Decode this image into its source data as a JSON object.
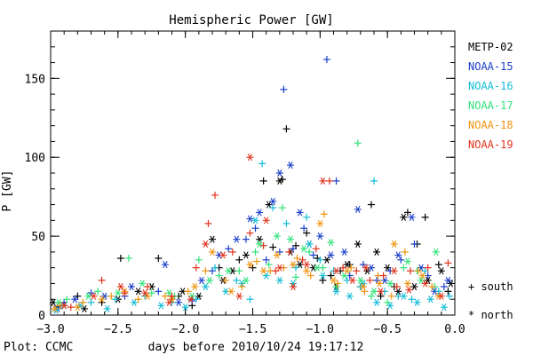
{
  "chart_data": {
    "type": "scatter",
    "title": "Hemispheric Power [GW]",
    "ylabel": "P [GW]",
    "xlabel": "days before 2010/10/24 19:17:12",
    "footer": "Plot: CCMC",
    "xlim": [
      -3.0,
      0.0
    ],
    "ylim": [
      0,
      180
    ],
    "x_ticks": [
      -3.0,
      -2.5,
      -2.0,
      -1.5,
      -1.0,
      -0.5,
      0.0
    ],
    "x_tick_labels": [
      "−3.0",
      "−2.5",
      "−2.0",
      "−1.5",
      "−1.0",
      "−0.5",
      "0.0"
    ],
    "y_ticks": [
      0,
      50,
      100,
      150
    ],
    "y_tick_labels": [
      "0",
      "50",
      "100",
      "150"
    ],
    "grid": false,
    "legend_position": "right",
    "marker_key": {
      "south": {
        "label": "+ south",
        "symbol": "+"
      },
      "north": {
        "label": "* north",
        "symbol": "*"
      }
    },
    "series": [
      {
        "name": "METP-02",
        "color": "#000000",
        "south": [
          [
            -2.95,
            5
          ],
          [
            -2.8,
            12
          ],
          [
            -2.62,
            8
          ],
          [
            -2.48,
            36
          ],
          [
            -2.2,
            36
          ],
          [
            -2.05,
            12
          ],
          [
            -1.95,
            6
          ],
          [
            -1.75,
            30
          ],
          [
            -1.6,
            35
          ],
          [
            -1.5,
            30
          ],
          [
            -1.42,
            85
          ],
          [
            -1.35,
            43
          ],
          [
            -1.28,
            86
          ],
          [
            -1.25,
            118
          ],
          [
            -1.18,
            44
          ],
          [
            -1.1,
            52
          ],
          [
            -1.02,
            36
          ],
          [
            -0.98,
            22
          ],
          [
            -0.92,
            25
          ],
          [
            -0.85,
            28
          ],
          [
            -0.78,
            32
          ],
          [
            -0.7,
            18
          ],
          [
            -0.62,
            70
          ],
          [
            -0.55,
            12
          ],
          [
            -0.45,
            18
          ],
          [
            -0.35,
            65
          ],
          [
            -0.28,
            45
          ],
          [
            -0.22,
            62
          ],
          [
            -0.12,
            32
          ],
          [
            -0.05,
            15
          ]
        ],
        "north": [
          [
            -2.98,
            8
          ],
          [
            -2.9,
            6
          ],
          [
            -2.75,
            4
          ],
          [
            -2.5,
            10
          ],
          [
            -2.35,
            15
          ],
          [
            -2.25,
            18
          ],
          [
            -2.1,
            10
          ],
          [
            -2.02,
            15
          ],
          [
            -1.9,
            12
          ],
          [
            -1.8,
            48
          ],
          [
            -1.72,
            22
          ],
          [
            -1.65,
            28
          ],
          [
            -1.55,
            38
          ],
          [
            -1.45,
            48
          ],
          [
            -1.38,
            70
          ],
          [
            -1.3,
            85
          ],
          [
            -1.22,
            40
          ],
          [
            -1.15,
            32
          ],
          [
            -1.05,
            30
          ],
          [
            -0.95,
            35
          ],
          [
            -0.88,
            18
          ],
          [
            -0.8,
            32
          ],
          [
            -0.72,
            45
          ],
          [
            -0.65,
            28
          ],
          [
            -0.58,
            40
          ],
          [
            -0.5,
            30
          ],
          [
            -0.42,
            15
          ],
          [
            -0.38,
            62
          ],
          [
            -0.3,
            18
          ],
          [
            -0.2,
            22
          ],
          [
            -0.1,
            28
          ],
          [
            -0.03,
            20
          ]
        ]
      },
      {
        "name": "NOAA-15",
        "color": "#1a3ec9",
        "south": [
          [
            -2.9,
            8
          ],
          [
            -2.7,
            14
          ],
          [
            -2.45,
            12
          ],
          [
            -2.2,
            15
          ],
          [
            -1.95,
            9
          ],
          [
            -1.8,
            28
          ],
          [
            -1.68,
            42
          ],
          [
            -1.55,
            48
          ],
          [
            -1.48,
            55
          ],
          [
            -1.4,
            35
          ],
          [
            -1.3,
            40
          ],
          [
            -1.27,
            143
          ],
          [
            -1.2,
            42
          ],
          [
            -1.12,
            55
          ],
          [
            -1.05,
            38
          ],
          [
            -0.95,
            162
          ],
          [
            -0.88,
            85
          ],
          [
            -0.78,
            25
          ],
          [
            -0.68,
            32
          ],
          [
            -0.58,
            22
          ],
          [
            -0.48,
            28
          ],
          [
            -0.4,
            35
          ],
          [
            -0.3,
            45
          ],
          [
            -0.2,
            25
          ],
          [
            -0.08,
            18
          ]
        ],
        "north": [
          [
            -2.95,
            4
          ],
          [
            -2.82,
            10
          ],
          [
            -2.6,
            12
          ],
          [
            -2.4,
            18
          ],
          [
            -2.15,
            32
          ],
          [
            -2.05,
            8
          ],
          [
            -1.88,
            22
          ],
          [
            -1.75,
            38
          ],
          [
            -1.62,
            48
          ],
          [
            -1.52,
            61
          ],
          [
            -1.45,
            65
          ],
          [
            -1.35,
            72
          ],
          [
            -1.3,
            90
          ],
          [
            -1.22,
            95
          ],
          [
            -1.15,
            65
          ],
          [
            -1.08,
            45
          ],
          [
            -1.0,
            50
          ],
          [
            -0.92,
            38
          ],
          [
            -0.82,
            40
          ],
          [
            -0.72,
            67
          ],
          [
            -0.62,
            30
          ],
          [
            -0.52,
            22
          ],
          [
            -0.42,
            38
          ],
          [
            -0.32,
            62
          ],
          [
            -0.25,
            30
          ],
          [
            -0.15,
            15
          ],
          [
            -0.05,
            22
          ]
        ]
      },
      {
        "name": "NOAA-16",
        "color": "#12bcd6",
        "south": [
          [
            -2.92,
            6
          ],
          [
            -2.7,
            8
          ],
          [
            -2.52,
            10
          ],
          [
            -2.3,
            12
          ],
          [
            -2.1,
            8
          ],
          [
            -1.92,
            10
          ],
          [
            -1.78,
            30
          ],
          [
            -1.62,
            22
          ],
          [
            -1.52,
            10
          ],
          [
            -1.43,
            96
          ],
          [
            -1.35,
            68
          ],
          [
            -1.25,
            58
          ],
          [
            -1.18,
            30
          ],
          [
            -1.1,
            62
          ],
          [
            -1.0,
            35
          ],
          [
            -0.9,
            28
          ],
          [
            -0.8,
            22
          ],
          [
            -0.7,
            18
          ],
          [
            -0.6,
            85
          ],
          [
            -0.52,
            15
          ],
          [
            -0.42,
            12
          ],
          [
            -0.32,
            10
          ],
          [
            -0.22,
            28
          ],
          [
            -0.12,
            15
          ],
          [
            -0.04,
            12
          ]
        ],
        "north": [
          [
            -2.96,
            3
          ],
          [
            -2.78,
            6
          ],
          [
            -2.58,
            4
          ],
          [
            -2.38,
            8
          ],
          [
            -2.18,
            6
          ],
          [
            -2.0,
            5
          ],
          [
            -1.85,
            18
          ],
          [
            -1.7,
            15
          ],
          [
            -1.58,
            20
          ],
          [
            -1.48,
            60
          ],
          [
            -1.4,
            25
          ],
          [
            -1.3,
            22
          ],
          [
            -1.2,
            20
          ],
          [
            -1.08,
            45
          ],
          [
            -0.98,
            25
          ],
          [
            -0.88,
            15
          ],
          [
            -0.78,
            12
          ],
          [
            -0.68,
            20
          ],
          [
            -0.58,
            8
          ],
          [
            -0.48,
            6
          ],
          [
            -0.38,
            12
          ],
          [
            -0.28,
            8
          ],
          [
            -0.18,
            10
          ],
          [
            -0.08,
            5
          ]
        ]
      },
      {
        "name": "NOAA-17",
        "color": "#31e37a",
        "south": [
          [
            -2.88,
            10
          ],
          [
            -2.65,
            15
          ],
          [
            -2.42,
            36
          ],
          [
            -2.25,
            14
          ],
          [
            -2.08,
            12
          ],
          [
            -1.9,
            35
          ],
          [
            -1.75,
            25
          ],
          [
            -1.6,
            28
          ],
          [
            -1.48,
            40
          ],
          [
            -1.38,
            32
          ],
          [
            -1.28,
            68
          ],
          [
            -1.18,
            24
          ],
          [
            -1.08,
            40
          ],
          [
            -0.98,
            30
          ],
          [
            -0.88,
            18
          ],
          [
            -0.72,
            109
          ],
          [
            -0.62,
            12
          ],
          [
            -0.5,
            8
          ],
          [
            -0.38,
            30
          ],
          [
            -0.28,
            28
          ],
          [
            -0.15,
            18
          ]
        ],
        "north": [
          [
            -2.94,
            8
          ],
          [
            -2.72,
            12
          ],
          [
            -2.5,
            14
          ],
          [
            -2.32,
            20
          ],
          [
            -2.12,
            14
          ],
          [
            -1.95,
            12
          ],
          [
            -1.82,
            22
          ],
          [
            -1.68,
            28
          ],
          [
            -1.55,
            22
          ],
          [
            -1.45,
            45
          ],
          [
            -1.32,
            50
          ],
          [
            -1.22,
            48
          ],
          [
            -1.12,
            42
          ],
          [
            -1.02,
            30
          ],
          [
            -0.92,
            46
          ],
          [
            -0.82,
            25
          ],
          [
            -0.7,
            22
          ],
          [
            -0.6,
            15
          ],
          [
            -0.48,
            20
          ],
          [
            -0.35,
            34
          ],
          [
            -0.25,
            22
          ],
          [
            -0.14,
            40
          ]
        ]
      },
      {
        "name": "NOAA-18",
        "color": "#f0940f",
        "south": [
          [
            -2.93,
            6
          ],
          [
            -2.76,
            8
          ],
          [
            -2.55,
            12
          ],
          [
            -2.35,
            10
          ],
          [
            -2.15,
            12
          ],
          [
            -1.98,
            15
          ],
          [
            -1.85,
            28
          ],
          [
            -1.7,
            22
          ],
          [
            -1.58,
            18
          ],
          [
            -1.47,
            34
          ],
          [
            -1.37,
            28
          ],
          [
            -1.27,
            30
          ],
          [
            -1.17,
            36
          ],
          [
            -1.07,
            25
          ],
          [
            -0.97,
            64
          ],
          [
            -0.87,
            20
          ],
          [
            -0.77,
            30
          ],
          [
            -0.67,
            15
          ],
          [
            -0.57,
            25
          ],
          [
            -0.47,
            12
          ],
          [
            -0.37,
            40
          ],
          [
            -0.27,
            28
          ],
          [
            -0.17,
            18
          ]
        ],
        "north": [
          [
            -2.97,
            4
          ],
          [
            -2.8,
            5
          ],
          [
            -2.62,
            10
          ],
          [
            -2.45,
            15
          ],
          [
            -2.28,
            12
          ],
          [
            -2.1,
            10
          ],
          [
            -1.93,
            18
          ],
          [
            -1.8,
            40
          ],
          [
            -1.66,
            15
          ],
          [
            -1.52,
            32
          ],
          [
            -1.42,
            28
          ],
          [
            -1.32,
            38
          ],
          [
            -1.2,
            32
          ],
          [
            -1.1,
            28
          ],
          [
            -1.0,
            58
          ],
          [
            -0.9,
            22
          ],
          [
            -0.8,
            28
          ],
          [
            -0.68,
            18
          ],
          [
            -0.56,
            20
          ],
          [
            -0.45,
            45
          ],
          [
            -0.35,
            20
          ],
          [
            -0.24,
            25
          ],
          [
            -0.12,
            12
          ]
        ]
      },
      {
        "name": "NOAA-19",
        "color": "#e2331c",
        "south": [
          [
            -2.85,
            5
          ],
          [
            -2.62,
            22
          ],
          [
            -2.45,
            14
          ],
          [
            -2.28,
            18
          ],
          [
            -2.1,
            12
          ],
          [
            -1.92,
            30
          ],
          [
            -1.83,
            58
          ],
          [
            -1.78,
            76
          ],
          [
            -1.65,
            40
          ],
          [
            -1.52,
            52
          ],
          [
            -1.42,
            44
          ],
          [
            -1.33,
            28
          ],
          [
            -1.23,
            40
          ],
          [
            -1.13,
            35
          ],
          [
            -1.03,
            42
          ],
          [
            -0.93,
            85
          ],
          [
            -0.83,
            30
          ],
          [
            -0.73,
            28
          ],
          [
            -0.63,
            22
          ],
          [
            -0.53,
            25
          ],
          [
            -0.43,
            18
          ],
          [
            -0.33,
            28
          ],
          [
            -0.2,
            30
          ],
          [
            -0.05,
            33
          ]
        ],
        "north": [
          [
            -2.9,
            6
          ],
          [
            -2.68,
            12
          ],
          [
            -2.48,
            18
          ],
          [
            -2.3,
            14
          ],
          [
            -2.12,
            8
          ],
          [
            -1.96,
            10
          ],
          [
            -1.85,
            45
          ],
          [
            -1.72,
            38
          ],
          [
            -1.6,
            12
          ],
          [
            -1.52,
            100
          ],
          [
            -1.4,
            60
          ],
          [
            -1.3,
            30
          ],
          [
            -1.2,
            18
          ],
          [
            -1.1,
            32
          ],
          [
            -0.98,
            85
          ],
          [
            -0.88,
            28
          ],
          [
            -0.76,
            22
          ],
          [
            -0.66,
            30
          ],
          [
            -0.55,
            15
          ],
          [
            -0.45,
            28
          ],
          [
            -0.34,
            16
          ],
          [
            -0.22,
            20
          ],
          [
            -0.1,
            12
          ]
        ]
      }
    ]
  }
}
